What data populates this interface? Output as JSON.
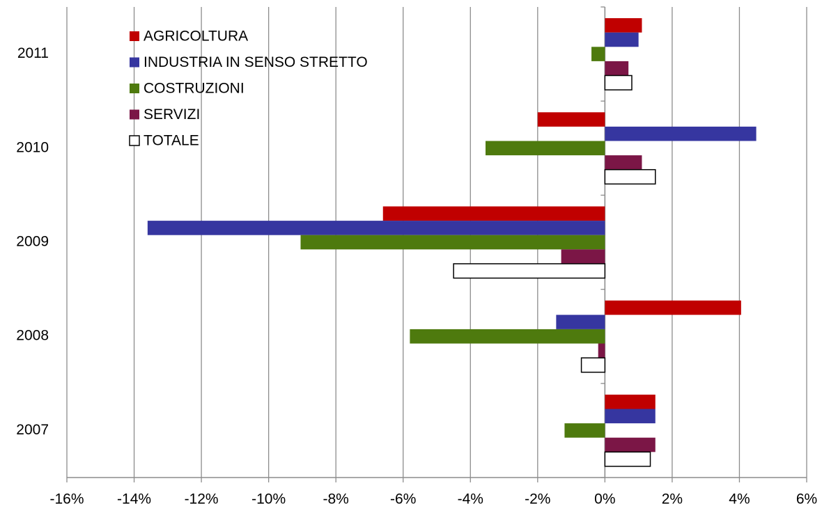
{
  "chart_data": {
    "type": "barh",
    "categories": [
      "2007",
      "2008",
      "2009",
      "2010",
      "2011"
    ],
    "series": [
      {
        "name": "AGRICOLTURA",
        "color": "#c00000",
        "values": [
          1.5,
          4.05,
          -6.6,
          -2.0,
          1.1
        ]
      },
      {
        "name": "INDUSTRIA IN SENSO STRETTO",
        "color": "#3636a0",
        "values": [
          1.5,
          -1.45,
          -13.6,
          4.5,
          1.0
        ]
      },
      {
        "name": "COSTRUZIONI",
        "color": "#4e7a0e",
        "values": [
          -1.2,
          -5.8,
          -9.05,
          -3.55,
          -0.4
        ]
      },
      {
        "name": "SERVIZI",
        "color": "#7b1646",
        "values": [
          1.5,
          -0.2,
          -1.3,
          1.1,
          0.7
        ]
      },
      {
        "name": "TOTALE",
        "color": "#ffffff",
        "values": [
          1.35,
          -0.7,
          -4.5,
          1.5,
          0.8
        ]
      }
    ],
    "xlim": [
      -16,
      6
    ],
    "xticks": [
      {
        "value": -16,
        "label": "-16%"
      },
      {
        "value": -14,
        "label": "-14%"
      },
      {
        "value": -12,
        "label": "-12%"
      },
      {
        "value": -10,
        "label": "-10%"
      },
      {
        "value": -8,
        "label": "-8%"
      },
      {
        "value": -6,
        "label": "-6%"
      },
      {
        "value": -4,
        "label": "-4%"
      },
      {
        "value": -2,
        "label": "-2%"
      },
      {
        "value": 0,
        "label": "0%"
      },
      {
        "value": 2,
        "label": "2%"
      },
      {
        "value": 4,
        "label": "4%"
      },
      {
        "value": 6,
        "label": "6%"
      }
    ],
    "grid": true,
    "legend": "upper left"
  }
}
